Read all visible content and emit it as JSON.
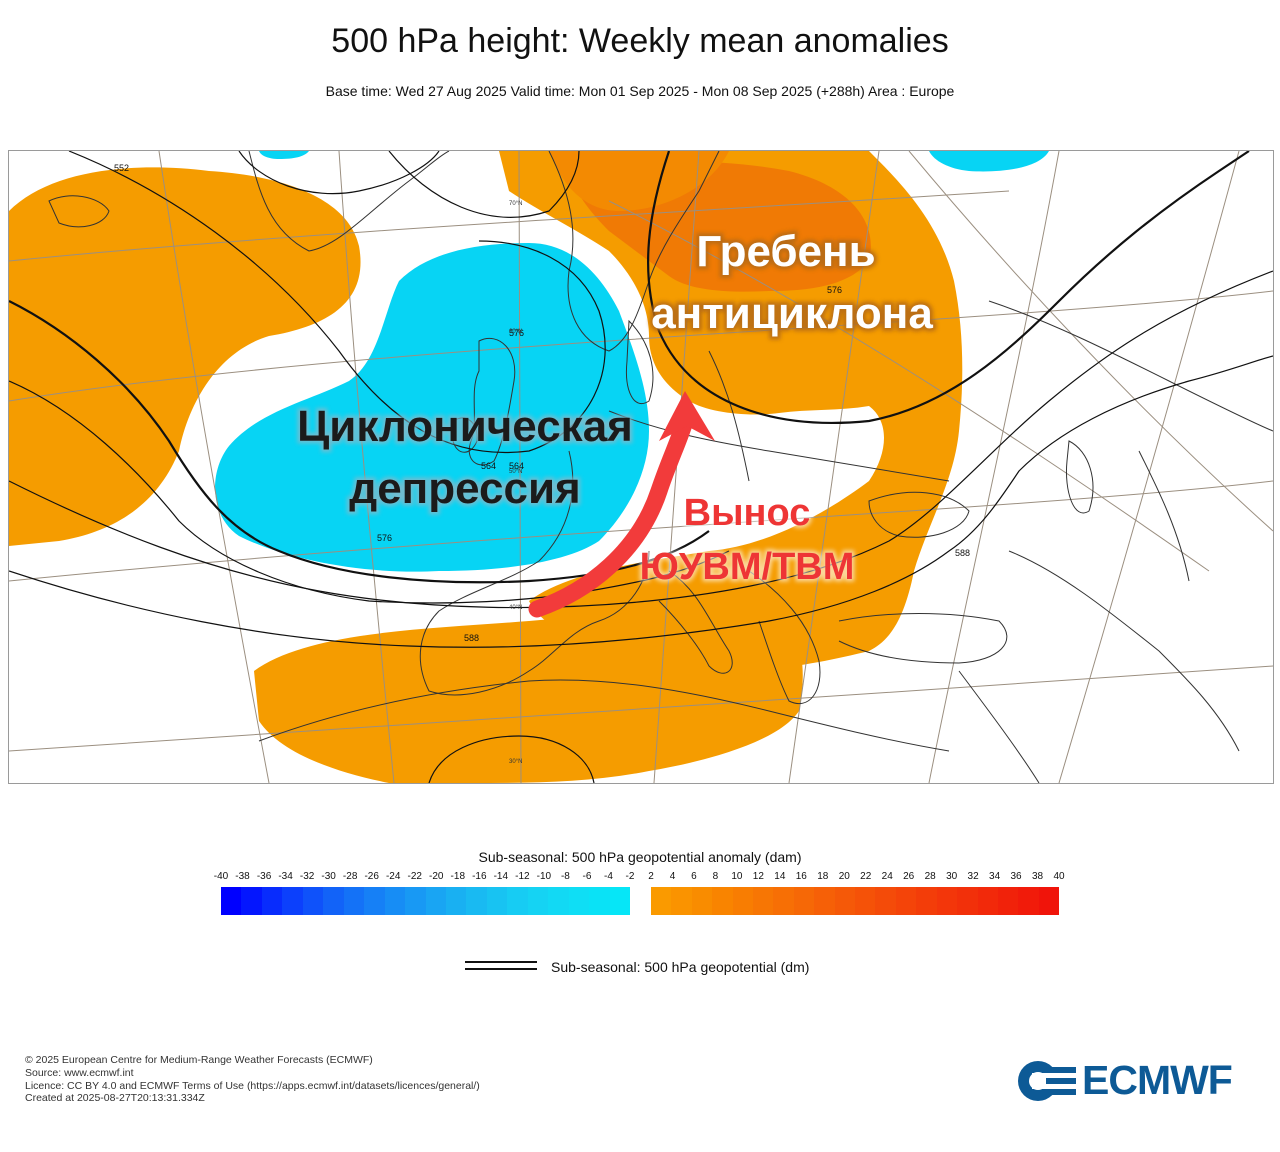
{
  "header": {
    "title": "500 hPa height: Weekly mean anomalies",
    "subtitle": "Base time: Wed 27 Aug 2025 Valid time: Mon 01 Sep 2025 - Mon 08 Sep 2025 (+288h) Area : Europe"
  },
  "map": {
    "annotations": {
      "cyclone_line1": "Циклоническая",
      "cyclone_line2": "депрессия",
      "ridge_line1": "Гребень",
      "ridge_line2": "антициклона",
      "advection_line1": "Вынос",
      "advection_line2": "ЮУВМ/ТВМ"
    },
    "annotation_colors": {
      "cyclone": "#1b1b1b",
      "ridge": "#ffffff",
      "advection": "#ee3535",
      "arrow": "#f23b3b"
    },
    "contour_labels": [
      "552",
      "564",
      "576",
      "576",
      "588",
      "588",
      "564",
      "576"
    ],
    "latitude_labels": [
      "70°N",
      "60°N",
      "50°N",
      "40°N",
      "30°N"
    ],
    "fill_colors": {
      "negative": "#07d4f4",
      "positive": "#f59c00",
      "positive_strong": "#f07a05"
    }
  },
  "colorbar": {
    "title": "Sub-seasonal: 500 hPa geopotential anomaly (dam)",
    "ticks": [
      "-40",
      "-38",
      "-36",
      "-34",
      "-32",
      "-30",
      "-28",
      "-26",
      "-24",
      "-22",
      "-20",
      "-18",
      "-16",
      "-14",
      "-12",
      "-10",
      "-8",
      "-6",
      "-4",
      "-2",
      "2",
      "4",
      "6",
      "8",
      "10",
      "12",
      "14",
      "16",
      "18",
      "20",
      "22",
      "24",
      "26",
      "28",
      "30",
      "32",
      "34",
      "36",
      "38",
      "40"
    ],
    "negative_colors": [
      "#0000ff",
      "#0416fe",
      "#082cfd",
      "#0c40fc",
      "#0f52fa",
      "#1263f8",
      "#1472f7",
      "#1680f6",
      "#178df5",
      "#1899f4",
      "#19a5f3",
      "#19b0f2",
      "#19baf2",
      "#18c3f2",
      "#17ccf3",
      "#15d3f3",
      "#12d9f4",
      "#0fdef5",
      "#0ae2f6",
      "#06e6f7"
    ],
    "positive_colors": [
      "#fa9a00",
      "#fa9300",
      "#f98c00",
      "#f98400",
      "#f87d02",
      "#f77604",
      "#f76f05",
      "#f66806",
      "#f66007",
      "#f55908",
      "#f55208",
      "#f44b09",
      "#f44409",
      "#f33d09",
      "#f3360a",
      "#f2300a",
      "#f2290a",
      "#f1220a",
      "#f11b0a",
      "#f0140a"
    ]
  },
  "legend": {
    "contour_label": "Sub-seasonal: 500 hPa geopotential (dm)"
  },
  "footer": {
    "lines": [
      "© 2025 European Centre for Medium-Range Weather Forecasts (ECMWF)",
      "Source: www.ecmwf.int",
      "Licence: CC BY 4.0 and ECMWF Terms of Use (https://apps.ecmwf.int/datasets/licences/general/)",
      "Created at 2025-08-27T20:13:31.334Z"
    ]
  },
  "logo": {
    "text": "ECMWF",
    "color": "#0d5a96"
  }
}
